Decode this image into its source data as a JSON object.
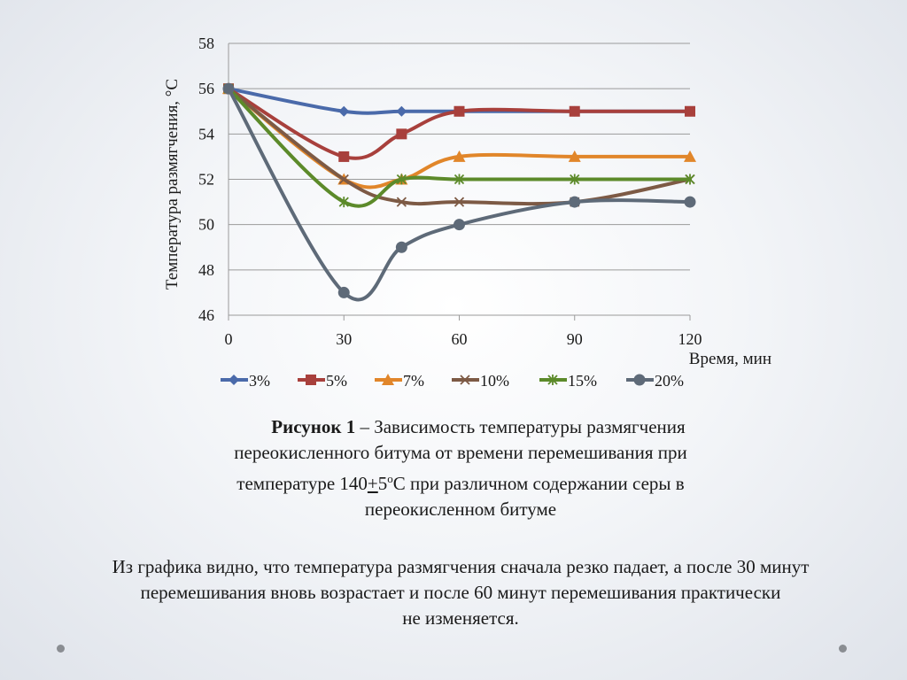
{
  "chart_data": {
    "type": "line",
    "ylabel": "Температура размягчения, °С",
    "xlabel": "Время, мин",
    "x": [
      0,
      30,
      45,
      60,
      90,
      120
    ],
    "xticks": [
      0,
      30,
      60,
      90,
      120
    ],
    "yticks": [
      46,
      48,
      50,
      52,
      54,
      56,
      58
    ],
    "ylim": [
      46,
      58
    ],
    "xlim": [
      0,
      120
    ],
    "grid": "horizontal",
    "legend": "bottom",
    "series": [
      {
        "name": "3%",
        "color": "#4a6aaa",
        "marker": "diamond",
        "values": [
          56,
          55,
          55,
          55,
          55,
          55
        ]
      },
      {
        "name": "5%",
        "color": "#a8403c",
        "marker": "square",
        "values": [
          56,
          53,
          54,
          55,
          55,
          55
        ]
      },
      {
        "name": "7%",
        "color": "#e1862a",
        "marker": "triangle",
        "values": [
          56,
          52,
          52,
          53,
          53,
          53
        ]
      },
      {
        "name": "10%",
        "color": "#7d5a45",
        "marker": "x",
        "values": [
          56,
          52,
          51,
          51,
          51,
          52
        ]
      },
      {
        "name": "15%",
        "color": "#5c8a2a",
        "marker": "star",
        "values": [
          56,
          51,
          52,
          52,
          52,
          52
        ]
      },
      {
        "name": "20%",
        "color": "#5e6a78",
        "marker": "circle",
        "values": [
          56,
          47,
          49,
          50,
          51,
          51
        ]
      }
    ]
  },
  "caption": {
    "bold": "Рисунок 1",
    "line1": " – Зависимость температуры размягчения",
    "line2": "переокисленного битума от времени перемешивания при",
    "line3_a": "температуре 140",
    "line3_pm": "+",
    "line3_b": "5",
    "line3_sup": "о",
    "line3_c": "С при различном содержании серы в",
    "line4": "переокисленном битуме"
  },
  "conclusion": {
    "line1": "Из графика видно, что температура размягчения сначала резко падает, а после 30 минут",
    "line2": "перемешивания вновь возрастает и  после 60 минут перемешивания практически",
    "line3": "не изменяется."
  }
}
